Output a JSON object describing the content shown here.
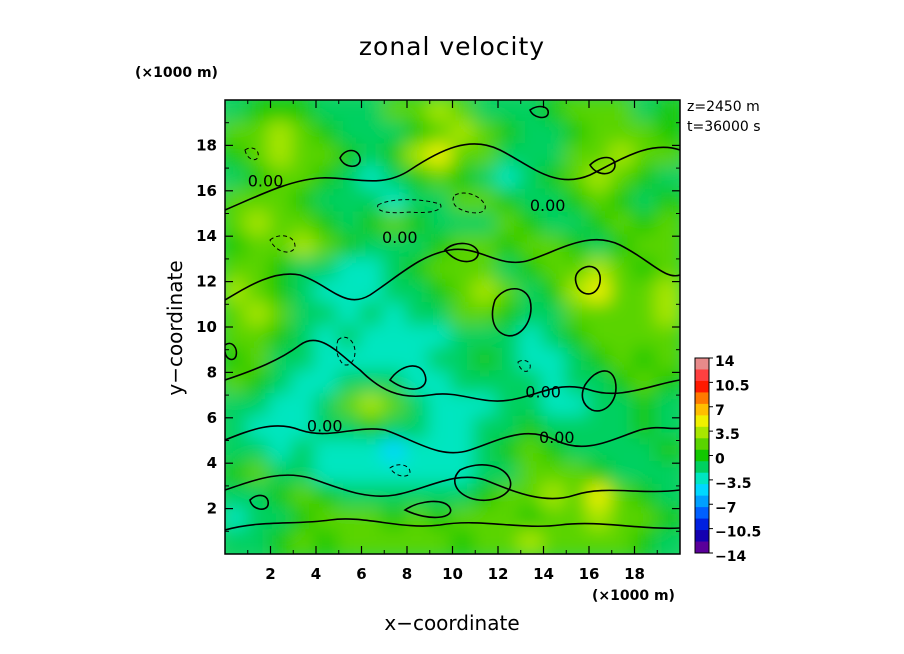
{
  "chart_data": {
    "type": "heatmap",
    "title": "zonal velocity",
    "xlabel": "x−coordinate",
    "ylabel": "y−coordinate",
    "x_unit": "(×1000 m)",
    "y_unit": "(×1000 m)",
    "xlim": [
      0,
      20
    ],
    "ylim": [
      0,
      20
    ],
    "x_ticks": [
      "2",
      "4",
      "6",
      "8",
      "10",
      "12",
      "14",
      "16",
      "18"
    ],
    "y_ticks": [
      "2",
      "4",
      "6",
      "8",
      "10",
      "12",
      "14",
      "16",
      "18"
    ],
    "z_text": "z=2450 m",
    "t_text": "t=36000 s",
    "colorbar": {
      "range": [
        -14,
        14
      ],
      "tick_labels": [
        "14",
        "10.5",
        "7",
        "3.5",
        "0",
        "−3.5",
        "−7",
        "−10.5",
        "−14"
      ],
      "tick_values": [
        14,
        10.5,
        7,
        3.5,
        0,
        -3.5,
        -7,
        -10.5,
        -14
      ],
      "colors": [
        "#e88a8a",
        "#ff4040",
        "#ff1a00",
        "#ff7a00",
        "#ffbe00",
        "#f0f000",
        "#a8e600",
        "#5ad400",
        "#12c800",
        "#00d060",
        "#00e6c0",
        "#00d8ff",
        "#00a0ff",
        "#0060ff",
        "#0020e0",
        "#1400b0",
        "#5a009a"
      ]
    },
    "contour_labels": [
      {
        "text": "0.00",
        "x": 1.0,
        "y": 16.2
      },
      {
        "text": "0.00",
        "x": 6.9,
        "y": 13.7
      },
      {
        "text": "0.00",
        "x": 13.4,
        "y": 15.1
      },
      {
        "text": "0.00",
        "x": 13.2,
        "y": 6.9
      },
      {
        "text": "0.00",
        "x": 3.6,
        "y": 5.4
      },
      {
        "text": "0.00",
        "x": 13.8,
        "y": 4.9
      }
    ],
    "data_field": [
      [
        -1,
        0,
        0.5,
        0,
        -1,
        -2,
        -1,
        1,
        2,
        3,
        1,
        -1,
        -2,
        -1,
        0,
        1,
        2,
        1,
        -1,
        0
      ],
      [
        1,
        2,
        3,
        1,
        0,
        -1,
        -2,
        -1,
        0,
        2,
        3,
        2,
        0,
        -1,
        -2,
        0,
        1,
        2,
        1,
        0
      ],
      [
        0,
        1,
        4,
        2,
        1,
        0,
        -1,
        0,
        3,
        5,
        2,
        1,
        -1,
        -2,
        -1,
        1,
        2,
        3,
        2,
        1
      ],
      [
        -1,
        0,
        1,
        2,
        0,
        -2,
        -3,
        -2,
        0,
        1,
        0,
        -2,
        -3,
        -2,
        0,
        1,
        3,
        2,
        0,
        -1
      ],
      [
        1,
        2,
        1,
        0,
        -1,
        -2,
        -2,
        -3,
        -2,
        -1,
        1,
        2,
        0,
        -2,
        -1,
        0,
        1,
        0,
        -1,
        0
      ],
      [
        2,
        3,
        2,
        1,
        0,
        -1,
        0,
        1,
        0,
        -1,
        -2,
        -1,
        1,
        0,
        -1,
        -2,
        0,
        1,
        0,
        1
      ],
      [
        0,
        1,
        2,
        3,
        1,
        0,
        -1,
        -2,
        -1,
        0,
        1,
        2,
        0,
        1,
        2,
        0,
        -1,
        0,
        1,
        2
      ],
      [
        2,
        1,
        0,
        -1,
        -2,
        -3,
        -4,
        -2,
        0,
        1,
        2,
        1,
        -1,
        0,
        1,
        2,
        3,
        1,
        0,
        2
      ],
      [
        3,
        2,
        0,
        -2,
        -3,
        -4,
        -3,
        -2,
        -1,
        0,
        2,
        3,
        1,
        -1,
        0,
        3,
        5,
        2,
        1,
        3
      ],
      [
        2,
        3,
        1,
        -1,
        -2,
        -3,
        -2,
        -3,
        -2,
        -1,
        1,
        2,
        0,
        -2,
        -1,
        1,
        2,
        1,
        2,
        3
      ],
      [
        1,
        2,
        0,
        -2,
        -3,
        -2,
        -3,
        -3,
        -4,
        -3,
        -2,
        -1,
        -2,
        -3,
        -2,
        0,
        1,
        2,
        1,
        2
      ],
      [
        0,
        1,
        -1,
        -2,
        -3,
        -4,
        -3,
        -4,
        -3,
        -2,
        -1,
        0,
        -2,
        -3,
        -3,
        -1,
        0,
        1,
        0,
        1
      ],
      [
        1,
        0,
        -1,
        -3,
        -3,
        -2,
        -1,
        -2,
        -3,
        -4,
        -2,
        -1,
        -1,
        -2,
        -3,
        -2,
        -1,
        0,
        1,
        0
      ],
      [
        -1,
        -2,
        -3,
        -4,
        -2,
        1,
        3,
        1,
        -1,
        -3,
        -4,
        -3,
        -2,
        -2,
        -3,
        -3,
        -2,
        -1,
        0,
        -1
      ],
      [
        -2,
        -3,
        -4,
        -3,
        -2,
        -1,
        0,
        -1,
        -2,
        -3,
        -3,
        -2,
        -1,
        0,
        -1,
        -2,
        -2,
        -1,
        0,
        -1
      ],
      [
        -1,
        -2,
        -3,
        -2,
        -3,
        -4,
        -3,
        -5,
        -4,
        -4,
        -3,
        -2,
        0,
        1,
        0,
        -1,
        -2,
        -2,
        -1,
        0
      ],
      [
        0,
        1,
        -1,
        -2,
        -3,
        -3,
        -4,
        -3,
        -3,
        -4,
        -3,
        -2,
        -1,
        1,
        2,
        1,
        0,
        -1,
        -1,
        -2
      ],
      [
        -2,
        -1,
        0,
        1,
        0,
        -1,
        -2,
        -2,
        -1,
        -2,
        -1,
        0,
        1,
        2,
        3,
        2,
        5,
        2,
        0,
        -1
      ],
      [
        -3,
        -2,
        -1,
        0,
        1,
        2,
        1,
        0,
        1,
        0,
        1,
        2,
        1,
        0,
        1,
        2,
        3,
        2,
        1,
        0
      ],
      [
        -2,
        -1,
        0,
        1,
        0,
        1,
        2,
        1,
        2,
        1,
        0,
        1,
        2,
        3,
        2,
        1,
        2,
        1,
        0,
        -1
      ]
    ]
  }
}
